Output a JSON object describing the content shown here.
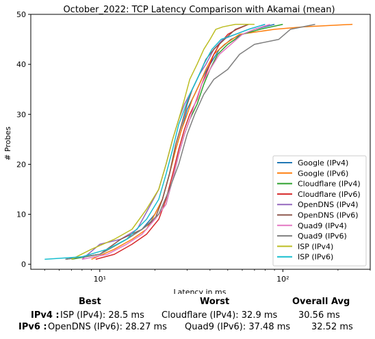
{
  "chart_data": {
    "type": "line",
    "title": "October_2022: TCP Latency Comparison with Akamai (mean)",
    "xlabel": "Latency in ms",
    "ylabel": "# Probes",
    "x_scale": "log",
    "xlim": [
      4.2,
      300
    ],
    "ylim": [
      -1,
      50
    ],
    "x_ticks": [
      10,
      100
    ],
    "x_tick_labels": [
      "10¹",
      "10²"
    ],
    "y_ticks": [
      0,
      10,
      20,
      30,
      40,
      50
    ],
    "grid": false,
    "legend_position": "lower-right",
    "series": [
      {
        "name": "Google (IPv4)",
        "color": "#1f77b4",
        "x": [
          6.5,
          10,
          14,
          17,
          20,
          22,
          24,
          26,
          28,
          30,
          33,
          36,
          40,
          45,
          52,
          60,
          70,
          90
        ],
        "y": [
          1,
          2,
          5,
          7,
          10,
          13,
          18,
          23,
          27,
          31,
          34,
          37,
          40,
          43,
          45,
          46,
          47,
          48
        ]
      },
      {
        "name": "Google (IPv6)",
        "color": "#ff7f0e",
        "x": [
          9,
          12,
          15,
          18,
          20,
          22,
          24,
          26,
          28,
          30,
          32,
          35,
          38,
          42,
          48,
          58,
          90,
          130,
          240
        ],
        "y": [
          1,
          3,
          5,
          7,
          10,
          13,
          18,
          23,
          27,
          30,
          33,
          36,
          39,
          42,
          44,
          46,
          47,
          47.5,
          48
        ]
      },
      {
        "name": "Cloudflare (IPv4)",
        "color": "#2ca02c",
        "x": [
          7,
          10,
          14,
          17,
          20,
          23,
          25,
          27,
          29,
          31,
          34,
          37,
          40,
          44,
          50,
          60,
          75,
          100
        ],
        "y": [
          1,
          2,
          5,
          7,
          9,
          12,
          17,
          22,
          26,
          29,
          32,
          36,
          39,
          42,
          44,
          46,
          47,
          48
        ]
      },
      {
        "name": "Cloudflare (IPv6)",
        "color": "#d62728",
        "x": [
          9.5,
          12,
          15,
          18,
          21,
          23,
          25,
          27,
          29,
          31,
          34,
          36,
          39,
          42,
          45,
          50,
          56,
          65
        ],
        "y": [
          1,
          2,
          4,
          6,
          9,
          13,
          18,
          23,
          27,
          30,
          33,
          36,
          39,
          42,
          44,
          46,
          47,
          48
        ]
      },
      {
        "name": "OpenDNS (IPv4)",
        "color": "#9467bd",
        "x": [
          8,
          10,
          13,
          16,
          19,
          21,
          23,
          25,
          27,
          29,
          32,
          35,
          38,
          42,
          47,
          55,
          65,
          80
        ],
        "y": [
          1,
          4,
          5,
          7,
          12,
          15,
          20,
          25,
          29,
          32,
          35,
          38,
          40,
          43,
          45,
          46,
          47,
          48
        ]
      },
      {
        "name": "OpenDNS (IPv6)",
        "color": "#8c564b",
        "x": [
          6.5,
          10,
          13,
          17,
          20,
          22,
          24,
          26,
          28,
          30,
          32,
          35,
          38,
          42,
          48,
          55,
          65
        ],
        "y": [
          1,
          2,
          5,
          7,
          9,
          13,
          18,
          24,
          28,
          32,
          35,
          38,
          41,
          43,
          45,
          47,
          48
        ]
      },
      {
        "name": "Quad9 (IPv4)",
        "color": "#e377c2",
        "x": [
          8,
          11,
          14,
          17,
          20,
          23,
          25,
          27,
          29,
          31,
          33,
          36,
          40,
          45,
          52,
          60,
          70,
          85
        ],
        "y": [
          1,
          2,
          4,
          6,
          9,
          12,
          17,
          22,
          26,
          29,
          32,
          36,
          39,
          42,
          44,
          46,
          47,
          48
        ]
      },
      {
        "name": "Quad9 (IPv6)",
        "color": "#7f7f7f",
        "x": [
          6.5,
          10,
          14,
          17,
          21,
          24,
          27,
          30,
          33,
          37,
          42,
          50,
          58,
          70,
          95,
          110,
          150
        ],
        "y": [
          1,
          2,
          5,
          7,
          10,
          15,
          20,
          26,
          30,
          34,
          37,
          39,
          42,
          44,
          45,
          47,
          48
        ]
      },
      {
        "name": "ISP (IPv4)",
        "color": "#bcbd22",
        "x": [
          7,
          9,
          12,
          15,
          18,
          21,
          23,
          25,
          27,
          29,
          31,
          34,
          37,
          40,
          43,
          47,
          55,
          70
        ],
        "y": [
          1,
          3,
          5,
          7,
          11,
          15,
          20,
          25,
          29,
          33,
          37,
          40,
          43,
          45,
          47,
          47.5,
          48,
          48
        ]
      },
      {
        "name": "ISP (IPv6)",
        "color": "#17becf",
        "x": [
          5,
          8,
          11,
          14,
          18,
          21,
          23,
          25,
          27,
          29,
          31,
          34,
          37,
          41,
          46,
          55,
          65,
          80
        ],
        "y": [
          1,
          1.5,
          3,
          5,
          9,
          13,
          18,
          23,
          28,
          31,
          34,
          37,
          40,
          43,
          45,
          46,
          47,
          48
        ]
      }
    ]
  },
  "summary_table": {
    "headers": [
      "Best",
      "Worst",
      "Overall Avg"
    ],
    "rows": [
      {
        "label": "IPv4 :",
        "best": "ISP (IPv4): 28.5 ms",
        "worst": "Cloudflare (IPv4): 32.9 ms",
        "avg": "30.56 ms"
      },
      {
        "label": "IPv6 :",
        "best": "OpenDNS (IPv6): 28.27 ms",
        "worst": "Quad9 (IPv6): 37.48 ms",
        "avg": "32.52 ms"
      }
    ]
  }
}
